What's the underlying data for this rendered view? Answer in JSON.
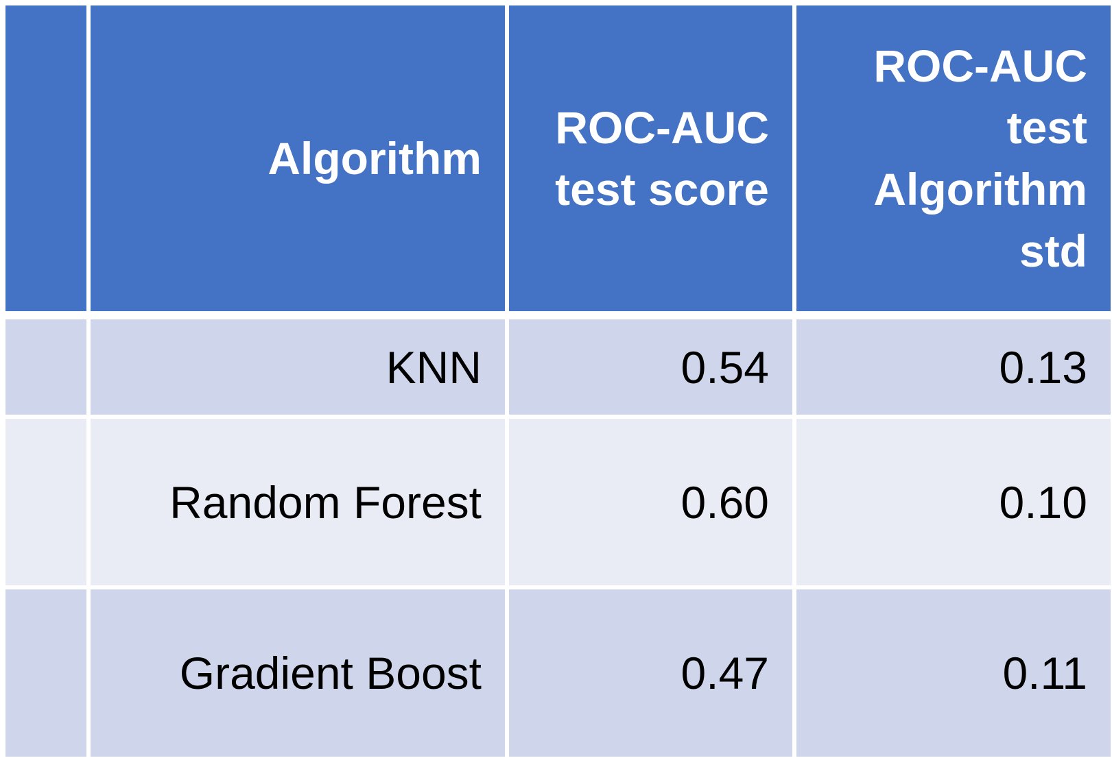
{
  "table": {
    "columns": [
      {
        "key": "index",
        "label": ""
      },
      {
        "key": "algorithm",
        "label": "Algorithm"
      },
      {
        "key": "score",
        "label": "ROC-AUC test score"
      },
      {
        "key": "std",
        "label": "ROC-AUC test Algorithm std"
      }
    ],
    "header_lines": {
      "algorithm": [
        "Algorithm"
      ],
      "score": [
        "ROC-AUC",
        "test score"
      ],
      "std": [
        "ROC-AUC",
        "test",
        "Algorithm",
        "std"
      ]
    },
    "rows": [
      {
        "index": "",
        "algorithm": "KNN",
        "score": "0.54",
        "std": "0.13"
      },
      {
        "index": "",
        "algorithm": "Random Forest",
        "score": "0.60",
        "std": "0.10"
      },
      {
        "index": "",
        "algorithm": "Gradient Boost",
        "score": "0.47",
        "std": "0.11"
      }
    ]
  },
  "colors": {
    "header_bg": "#4472c4",
    "row_odd_bg": "#cfd5ea",
    "row_even_bg": "#e9ebf5",
    "header_text": "#ffffff",
    "cell_text": "#000000"
  },
  "chart_data": {
    "type": "table",
    "columns": [
      "",
      "Algorithm",
      "ROC-AUC test score",
      "ROC-AUC test Algorithm std"
    ],
    "rows": [
      [
        "",
        "KNN",
        0.54,
        0.13
      ],
      [
        "",
        "Random Forest",
        0.6,
        0.1
      ],
      [
        "",
        "Gradient Boost",
        0.47,
        0.11
      ]
    ]
  }
}
